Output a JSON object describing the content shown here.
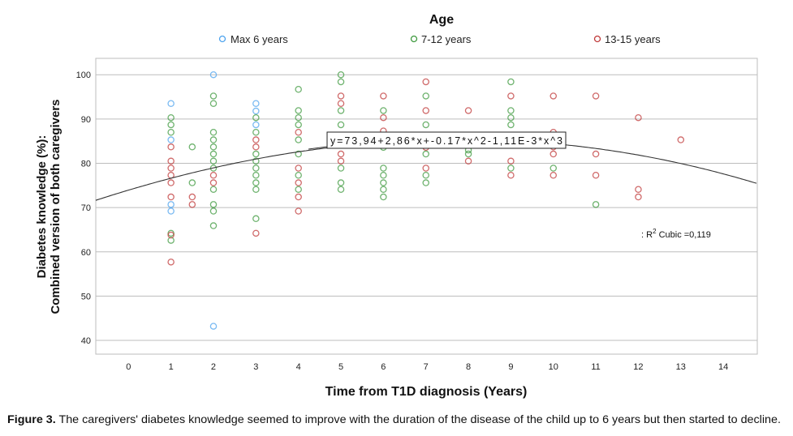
{
  "chart_data": {
    "type": "scatter",
    "legend_title": "Age",
    "legend_placement": "top-center",
    "xlabel": "Time from T1D diagnosis (Years)",
    "ylabel": [
      "Diabetes knowledge (%):",
      "Combined version of both caregivers"
    ],
    "xlim": [
      -0.77,
      14.8
    ],
    "ylim": [
      36.9,
      103.7
    ],
    "xticks": [
      "0",
      "1",
      "2",
      "3",
      "4",
      "5",
      "6",
      "7",
      "8",
      "9",
      "10",
      "11",
      "12",
      "13",
      "14"
    ],
    "yticks": [
      "100",
      "90",
      "80",
      "70",
      "60",
      "50",
      "40"
    ],
    "grid": "horizontal",
    "series": [
      {
        "name": "Max 6 years",
        "color": "#4da3ee",
        "points": [
          [
            1,
            93.5
          ],
          [
            1,
            85.3
          ],
          [
            1,
            70.7
          ],
          [
            1,
            69.2
          ],
          [
            2,
            100
          ],
          [
            2,
            43.2
          ],
          [
            3,
            93.5
          ],
          [
            3,
            91.8
          ],
          [
            3,
            88.7
          ]
        ]
      },
      {
        "name": "7-12 years",
        "color": "#3f9a3f",
        "points": [
          [
            1,
            90.3
          ],
          [
            1,
            88.7
          ],
          [
            1,
            87
          ],
          [
            1,
            64.2
          ],
          [
            1,
            62.6
          ],
          [
            1.5,
            83.7
          ],
          [
            1.5,
            75.6
          ],
          [
            2,
            95.2
          ],
          [
            2,
            93.5
          ],
          [
            2,
            87
          ],
          [
            2,
            85.3
          ],
          [
            2,
            83.7
          ],
          [
            2,
            82.1
          ],
          [
            2,
            80.5
          ],
          [
            2,
            78.9
          ],
          [
            2,
            74.1
          ],
          [
            2,
            70.7
          ],
          [
            2,
            69.2
          ],
          [
            2,
            65.9
          ],
          [
            3,
            90.3
          ],
          [
            3,
            87
          ],
          [
            3,
            82.1
          ],
          [
            3,
            80.5
          ],
          [
            3,
            78.9
          ],
          [
            3,
            77.3
          ],
          [
            3,
            75.6
          ],
          [
            3,
            74.1
          ],
          [
            3,
            67.5
          ],
          [
            4,
            96.7
          ],
          [
            4,
            91.9
          ],
          [
            4,
            90.3
          ],
          [
            4,
            88.7
          ],
          [
            4,
            85.3
          ],
          [
            4,
            82.1
          ],
          [
            4,
            77.3
          ],
          [
            4,
            74.1
          ],
          [
            5,
            100
          ],
          [
            5,
            98.4
          ],
          [
            5,
            91.9
          ],
          [
            5,
            88.7
          ],
          [
            5,
            78.9
          ],
          [
            5,
            75.6
          ],
          [
            5,
            74.1
          ],
          [
            6,
            91.9
          ],
          [
            6,
            83.6
          ],
          [
            6,
            78.9
          ],
          [
            6,
            77.3
          ],
          [
            6,
            75.6
          ],
          [
            6,
            74.1
          ],
          [
            6,
            72.4
          ],
          [
            7,
            95.2
          ],
          [
            7,
            88.7
          ],
          [
            7,
            82.1
          ],
          [
            7,
            77.3
          ],
          [
            7,
            75.6
          ],
          [
            8,
            83
          ],
          [
            8,
            82.1
          ],
          [
            9,
            98.4
          ],
          [
            9,
            91.9
          ],
          [
            9,
            90.3
          ],
          [
            9,
            88.7
          ],
          [
            9,
            78.9
          ],
          [
            10,
            85.3
          ],
          [
            10,
            78.9
          ],
          [
            11,
            70.7
          ]
        ]
      },
      {
        "name": "13-15 years",
        "color": "#c03a3a",
        "points": [
          [
            1,
            83.7
          ],
          [
            1,
            80.5
          ],
          [
            1,
            78.9
          ],
          [
            1,
            77.3
          ],
          [
            1,
            75.6
          ],
          [
            1,
            72.4
          ],
          [
            1,
            63.8
          ],
          [
            1,
            57.7
          ],
          [
            1.5,
            72.4
          ],
          [
            1.5,
            70.7
          ],
          [
            2,
            77.3
          ],
          [
            2,
            75.6
          ],
          [
            3,
            85.3
          ],
          [
            3,
            83.7
          ],
          [
            3,
            64.2
          ],
          [
            4,
            87
          ],
          [
            4,
            78.9
          ],
          [
            4,
            75.6
          ],
          [
            4,
            72.4
          ],
          [
            4,
            69.2
          ],
          [
            5,
            95.2
          ],
          [
            5,
            93.5
          ],
          [
            5,
            82.1
          ],
          [
            5,
            80.5
          ],
          [
            6,
            95.2
          ],
          [
            6,
            90.3
          ],
          [
            6,
            87.3
          ],
          [
            7,
            98.4
          ],
          [
            7,
            91.9
          ],
          [
            7,
            83.6
          ],
          [
            7,
            78.9
          ],
          [
            8,
            91.9
          ],
          [
            8,
            80.5
          ],
          [
            9,
            95.2
          ],
          [
            9,
            80.5
          ],
          [
            9,
            77.3
          ],
          [
            10,
            95.2
          ],
          [
            10,
            87
          ],
          [
            10,
            83.7
          ],
          [
            10,
            82.1
          ],
          [
            10,
            77.3
          ],
          [
            11,
            95.2
          ],
          [
            11,
            82.1
          ],
          [
            11,
            77.3
          ],
          [
            12,
            90.3
          ],
          [
            12,
            74.1
          ],
          [
            12,
            72.4
          ],
          [
            13,
            85.3
          ]
        ]
      }
    ],
    "fit": {
      "type": "cubic",
      "coefficients": [
        73.94,
        2.86,
        -0.17,
        -0.00111
      ],
      "equation_label": "y=73,94+2,86*x+-0.17*x^2-1,11E-3*x^3",
      "r2_prefix": ": R",
      "r2_sup": "2",
      "r2_suffix": " Cubic =0,119"
    }
  },
  "caption": {
    "label": "Figure 3.",
    "text": " The caregivers' diabetes knowledge seemed to improve with the duration of the disease of the child up to 6 years but then started to decline."
  }
}
